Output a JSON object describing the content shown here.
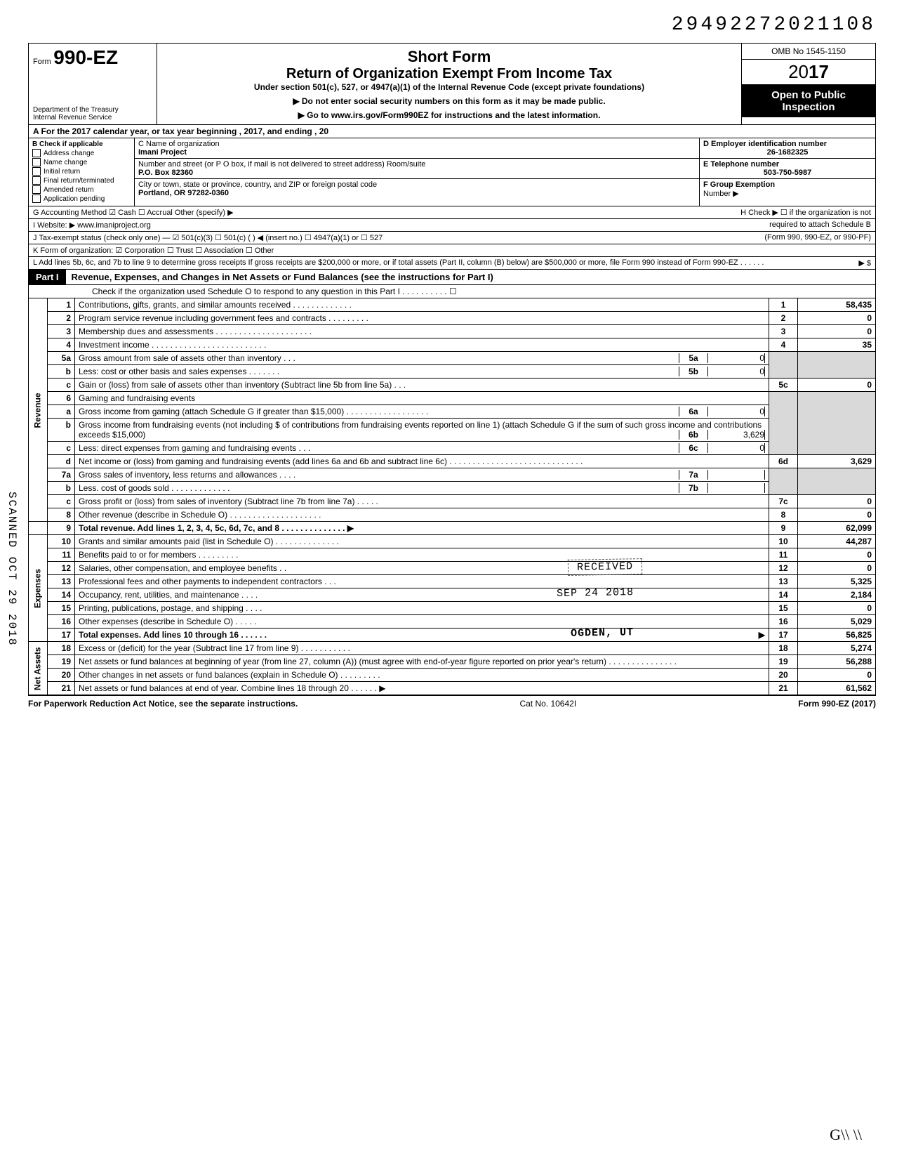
{
  "doc_number": "29492272021108",
  "form": {
    "prefix": "Form",
    "number": "990-EZ",
    "dept1": "Department of the Treasury",
    "dept2": "Internal Revenue Service"
  },
  "header_center": {
    "short_form": "Short Form",
    "title": "Return of Organization Exempt From Income Tax",
    "under": "Under section 501(c), 527, or 4947(a)(1) of the Internal Revenue Code (except private foundations)",
    "arrow1": "▶ Do not enter social security numbers on this form as it may be made public.",
    "arrow2": "▶ Go to www.irs.gov/Form990EZ for instructions and the latest information."
  },
  "header_right": {
    "omb": "OMB No 1545-1150",
    "year_prefix": "20",
    "year_bold": "17",
    "open1": "Open to Public",
    "open2": "Inspection"
  },
  "row_a": "A  For the 2017 calendar year, or tax year beginning                                              , 2017, and ending                                   , 20",
  "col_b": {
    "title": "B  Check if applicable",
    "items": [
      "Address change",
      "Name change",
      "Initial return",
      "Final return/terminated",
      "Amended return",
      "Application pending"
    ]
  },
  "col_c": {
    "label_name": "C  Name of organization",
    "name": "Imani Project",
    "label_addr": "Number and street (or P O  box, if mail is not delivered to street address)              Room/suite",
    "addr": "P.O. Box 82360",
    "label_city": "City or town, state or province, country, and ZIP or foreign postal code",
    "city": "Portland, OR 97282-0360"
  },
  "col_de": {
    "d_label": "D  Employer identification number",
    "d_val": "26-1682325",
    "e_label": "E  Telephone number",
    "e_val": "503-750-5987",
    "f_label": "F  Group Exemption",
    "f_label2": "Number ▶"
  },
  "row_g": {
    "left": "G  Accounting Method     ☑ Cash     ☐ Accrual     Other (specify) ▶",
    "right_h": "H  Check ▶ ☐ if the organization is not"
  },
  "row_i": {
    "left": "I   Website: ▶     www.imaniproject.org",
    "right": "required to attach Schedule B"
  },
  "row_j": {
    "left": "J  Tax-exempt status (check only one) — ☑ 501(c)(3)   ☐ 501(c) (      ) ◀ (insert no.) ☐ 4947(a)(1) or   ☐ 527",
    "right": "(Form 990, 990-EZ, or 990-PF)"
  },
  "row_k": "K  Form of organization:   ☑ Corporation      ☐ Trust              ☐ Association      ☐ Other",
  "row_l": {
    "text": "L  Add lines 5b, 6c, and 7b to line 9 to determine gross receipts  If gross receipts are $200,000 or more, or if total assets (Part II, column (B) below) are $500,000 or more, file Form 990 instead of Form 990-EZ .  .  .  .  .  .",
    "arrow": "▶   $"
  },
  "part1": {
    "label": "Part I",
    "title": "Revenue, Expenses, and Changes in Net Assets or Fund Balances (see the instructions for Part I)",
    "check_o": "Check if the organization used Schedule O to respond to any question in this Part I  .  .  .  .  .  .  .  .  .  .   ☐"
  },
  "side_labels": {
    "revenue": "Revenue",
    "expenses": "Expenses",
    "netassets": "Net Assets"
  },
  "lines": {
    "1": {
      "desc": "Contributions, gifts, grants, and similar amounts received .  .  .  .  .  .  .  .  .  .  .  .  .",
      "box": "1",
      "amt": "58,435"
    },
    "2": {
      "desc": "Program service revenue including government fees and contracts   .  .  .  .  .  .  .  .  .",
      "box": "2",
      "amt": "0"
    },
    "3": {
      "desc": "Membership dues and assessments .  .  .  .  .  .  .  .  .  .  .  .  .  .  .  .  .  .  .  .  .",
      "box": "3",
      "amt": "0"
    },
    "4": {
      "desc": "Investment income    .  .  .  .  .  .  .  .  .  .  .  .  .  .  .  .  .  .  .  .  .  .  .  .  .",
      "box": "4",
      "amt": "35"
    },
    "5a": {
      "desc": "Gross amount from sale of assets other than inventory   .  .  .",
      "ibox": "5a",
      "iamt": "0"
    },
    "5b": {
      "desc": "Less: cost or other basis and sales expenses .  .  .  .  .  .  .",
      "ibox": "5b",
      "iamt": "0"
    },
    "5c": {
      "desc": "Gain or (loss) from sale of assets other than inventory (Subtract line 5b from line 5a)  .  .  .",
      "box": "5c",
      "amt": "0"
    },
    "6": {
      "desc": "Gaming and fundraising events"
    },
    "6a": {
      "desc": "Gross income from gaming (attach Schedule G if greater than $15,000) .  .  .  .  .  .  .  .  .  .  .  .  .  .  .  .  .  .",
      "ibox": "6a",
      "iamt": "0"
    },
    "6b": {
      "desc": "Gross income from fundraising events (not including  $                    of contributions from fundraising events reported on line 1) (attach Schedule G if the sum of such gross income and contributions exceeds $15,000)",
      "ibox": "6b",
      "iamt": "3,629"
    },
    "6c": {
      "desc": "Less: direct expenses from gaming and fundraising events   .  .  .",
      "ibox": "6c",
      "iamt": "0"
    },
    "6d": {
      "desc": "Net income or (loss) from gaming and fundraising events (add lines 6a and 6b and subtract line 6c)     .  .  .  .  .  .  .  .  .  .  .  .  .  .  .  .  .  .  .  .  .  .  .  .  .  .  .  .  .",
      "box": "6d",
      "amt": "3,629"
    },
    "7a": {
      "desc": "Gross sales of inventory, less returns and allowances  .  .  .  .",
      "ibox": "7a",
      "iamt": ""
    },
    "7b": {
      "desc": "Less. cost of goods sold      .  .  .  .  .  .  .  .  .  .  .  .  .",
      "ibox": "7b",
      "iamt": ""
    },
    "7c": {
      "desc": "Gross profit or (loss) from sales of inventory (Subtract line 7b from line 7a)      .  .  .  .  .",
      "box": "7c",
      "amt": "0"
    },
    "8": {
      "desc": "Other revenue (describe in Schedule O) .  .  .  .  .  .  .  .  .  .  .  .  .  .  .  .  .  .  .  .",
      "box": "8",
      "amt": "0"
    },
    "9": {
      "desc": "Total revenue. Add lines 1, 2, 3, 4, 5c, 6d, 7c, and 8   .  .  .  .  .  .  .  .  .  .  .  .  .  . ▶",
      "box": "9",
      "amt": "62,099",
      "bold": true
    },
    "10": {
      "desc": "Grants and similar amounts paid (list in Schedule O)   .  .  .  .  .  .  .  .  .  .  .  .  .  .",
      "box": "10",
      "amt": "44,287"
    },
    "11": {
      "desc": "Benefits paid to or for members   .  .  .  .  .  .  .  .  .",
      "box": "11",
      "amt": "0"
    },
    "12": {
      "desc": "Salaries, other compensation, and employee benefits  .  .",
      "box": "12",
      "amt": "0"
    },
    "13": {
      "desc": "Professional fees and other payments to independent contractors .  .  .",
      "box": "13",
      "amt": "5,325"
    },
    "14": {
      "desc": "Occupancy, rent, utilities, and maintenance    .  .  .  .",
      "box": "14",
      "amt": "2,184"
    },
    "15": {
      "desc": "Printing, publications, postage, and shipping .  .  .  .",
      "box": "15",
      "amt": "0"
    },
    "16": {
      "desc": "Other expenses (describe in Schedule O)  .  .  .  .  .",
      "box": "16",
      "amt": "5,029"
    },
    "17": {
      "desc": "Total expenses. Add lines 10 through 16 .  .  .  .  .  .",
      "box": "17",
      "amt": "56,825",
      "bold": true,
      "arrow": "▶"
    },
    "18": {
      "desc": "Excess or (deficit) for the year (Subtract line 17 from line 9)    .  .  .  .  .  .  .  .  .  .  .",
      "box": "18",
      "amt": "5,274"
    },
    "19": {
      "desc": "Net assets or fund balances at beginning of year (from line 27, column (A)) (must agree with end-of-year figure reported on prior year's return)    .  .  .  .  .  .  .  .  .  .  .  .  .  .  .",
      "box": "19",
      "amt": "56,288"
    },
    "20": {
      "desc": "Other changes in net assets or fund balances (explain in Schedule O) .  .  .  .  .  .  .  .  .",
      "box": "20",
      "amt": "0"
    },
    "21": {
      "desc": "Net assets or fund balances at end of year. Combine lines 18 through 20    .  .  .  .  .  . ▶",
      "box": "21",
      "amt": "61,562"
    }
  },
  "stamps": {
    "received": "RECEIVED",
    "date": "SEP 24 2018",
    "ogden": "OGDEN, UT"
  },
  "footer": {
    "left": "For Paperwork Reduction Act Notice, see the separate instructions.",
    "center": "Cat  No. 10642I",
    "right": "Form 990-EZ (2017)"
  },
  "scanned": "SCANNED OCT 29 2018",
  "gn": "G\\\\    \\\\"
}
